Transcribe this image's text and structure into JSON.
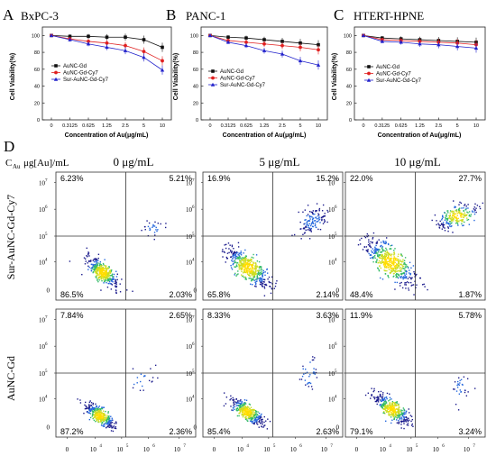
{
  "chart_data": [
    {
      "type": "line",
      "panel_letter": "A",
      "title": "BxPC-3",
      "xlabel": "Concentration of Au(μg/mL)",
      "ylabel": "Cell Viability(%)",
      "categories": [
        "0",
        "0.3125",
        "0.625",
        "1.25",
        "2.5",
        "5",
        "10"
      ],
      "yticks": [
        "0",
        "20",
        "40",
        "60",
        "80",
        "100"
      ],
      "ylim": [
        0,
        110
      ],
      "legend_position": "left",
      "series": [
        {
          "name": "AuNC-Gd",
          "color": "#111111",
          "marker": "square",
          "values": [
            100,
            99,
            99,
            98,
            98,
            95,
            86
          ]
        },
        {
          "name": "AuNC-Gd-Cy7",
          "color": "#e02020",
          "marker": "circle",
          "values": [
            100,
            96,
            93,
            91,
            88,
            81,
            70
          ]
        },
        {
          "name": "Sur-AuNC-Gd-Cy7",
          "color": "#2222cc",
          "marker": "triangle",
          "values": [
            100,
            95,
            90,
            86,
            82,
            74,
            59
          ]
        }
      ]
    },
    {
      "type": "line",
      "panel_letter": "B",
      "title": "PANC-1",
      "xlabel": "Concentration of Au(μg/mL)",
      "ylabel": "Cell Viability(%)",
      "categories": [
        "0",
        "0.3125",
        "0.625",
        "1.25",
        "2.5",
        "5",
        "10"
      ],
      "yticks": [
        "0",
        "20",
        "40",
        "60",
        "80",
        "100"
      ],
      "ylim": [
        0,
        110
      ],
      "legend_position": "left",
      "series": [
        {
          "name": "AuNC-Gd",
          "color": "#111111",
          "marker": "square",
          "values": [
            100,
            98,
            97,
            95,
            93,
            91,
            89
          ]
        },
        {
          "name": "AuNC-Gd-Cy7",
          "color": "#e02020",
          "marker": "circle",
          "values": [
            100,
            94,
            92,
            90,
            88,
            86,
            83
          ]
        },
        {
          "name": "Sur-AuNC-Gd-Cy7",
          "color": "#2222cc",
          "marker": "triangle",
          "values": [
            100,
            92,
            88,
            82,
            78,
            70,
            65
          ]
        }
      ]
    },
    {
      "type": "line",
      "panel_letter": "C",
      "title": "HTERT-HPNE",
      "xlabel": "Concentration of Au(μg/mL)",
      "ylabel": "Cell Viability(%)",
      "categories": [
        "0",
        "0.3125",
        "0.625",
        "1.25",
        "2.5",
        "5",
        "10"
      ],
      "yticks": [
        "0",
        "20",
        "40",
        "60",
        "80",
        "100"
      ],
      "ylim": [
        0,
        110
      ],
      "legend_position": "left",
      "series": [
        {
          "name": "AuNC-Gd",
          "color": "#111111",
          "marker": "square",
          "values": [
            100,
            97,
            96,
            95,
            94,
            93,
            92
          ]
        },
        {
          "name": "AuNC-Gd-Cy7",
          "color": "#e02020",
          "marker": "circle",
          "values": [
            100,
            95,
            94,
            93,
            92,
            91,
            89
          ]
        },
        {
          "name": "Sur-AuNC-Gd-Cy7",
          "color": "#2222cc",
          "marker": "triangle",
          "values": [
            100,
            93,
            92,
            90,
            89,
            87,
            85
          ]
        }
      ]
    },
    {
      "type": "scatter",
      "panel_letter": "D",
      "row_header": "C",
      "row_header_sub": "Au",
      "row_header_rest": "μg[Au]/mL",
      "column_titles": [
        "0 μg/mL",
        "5 μg/mL",
        "10 μg/mL"
      ],
      "row_labels": [
        "Sur-AuNC-Gd-Cy7",
        "AuNC-Gd"
      ],
      "axis_ticks": [
        "10",
        "10",
        "10",
        "10",
        "10"
      ],
      "axis_tick_exponents": [
        "3",
        "4",
        "5",
        "6",
        "7"
      ],
      "x_zero_label": "0",
      "density_colors": [
        "#1a1a8c",
        "#2266dd",
        "#33bb66",
        "#ccdd22",
        "#ffdd00"
      ],
      "quadrants": [
        {
          "row": 0,
          "col": 0,
          "ul": "6.23%",
          "ur": "5.21%",
          "ll": "86.5%",
          "lr": "2.03%"
        },
        {
          "row": 0,
          "col": 1,
          "ul": "16.9%",
          "ur": "15.2%",
          "ll": "65.8%",
          "lr": "2.14%"
        },
        {
          "row": 0,
          "col": 2,
          "ul": "22.0%",
          "ur": "27.7%",
          "ll": "48.4%",
          "lr": "1.87%"
        },
        {
          "row": 1,
          "col": 0,
          "ul": "7.84%",
          "ur": "2.65%",
          "ll": "87.2%",
          "lr": "2.36%"
        },
        {
          "row": 1,
          "col": 1,
          "ul": "8.33%",
          "ur": "3.63%",
          "ll": "85.4%",
          "lr": "2.63%"
        },
        {
          "row": 1,
          "col": 2,
          "ul": "11.9%",
          "ur": "5.78%",
          "ll": "79.1%",
          "lr": "3.24%"
        }
      ]
    }
  ]
}
